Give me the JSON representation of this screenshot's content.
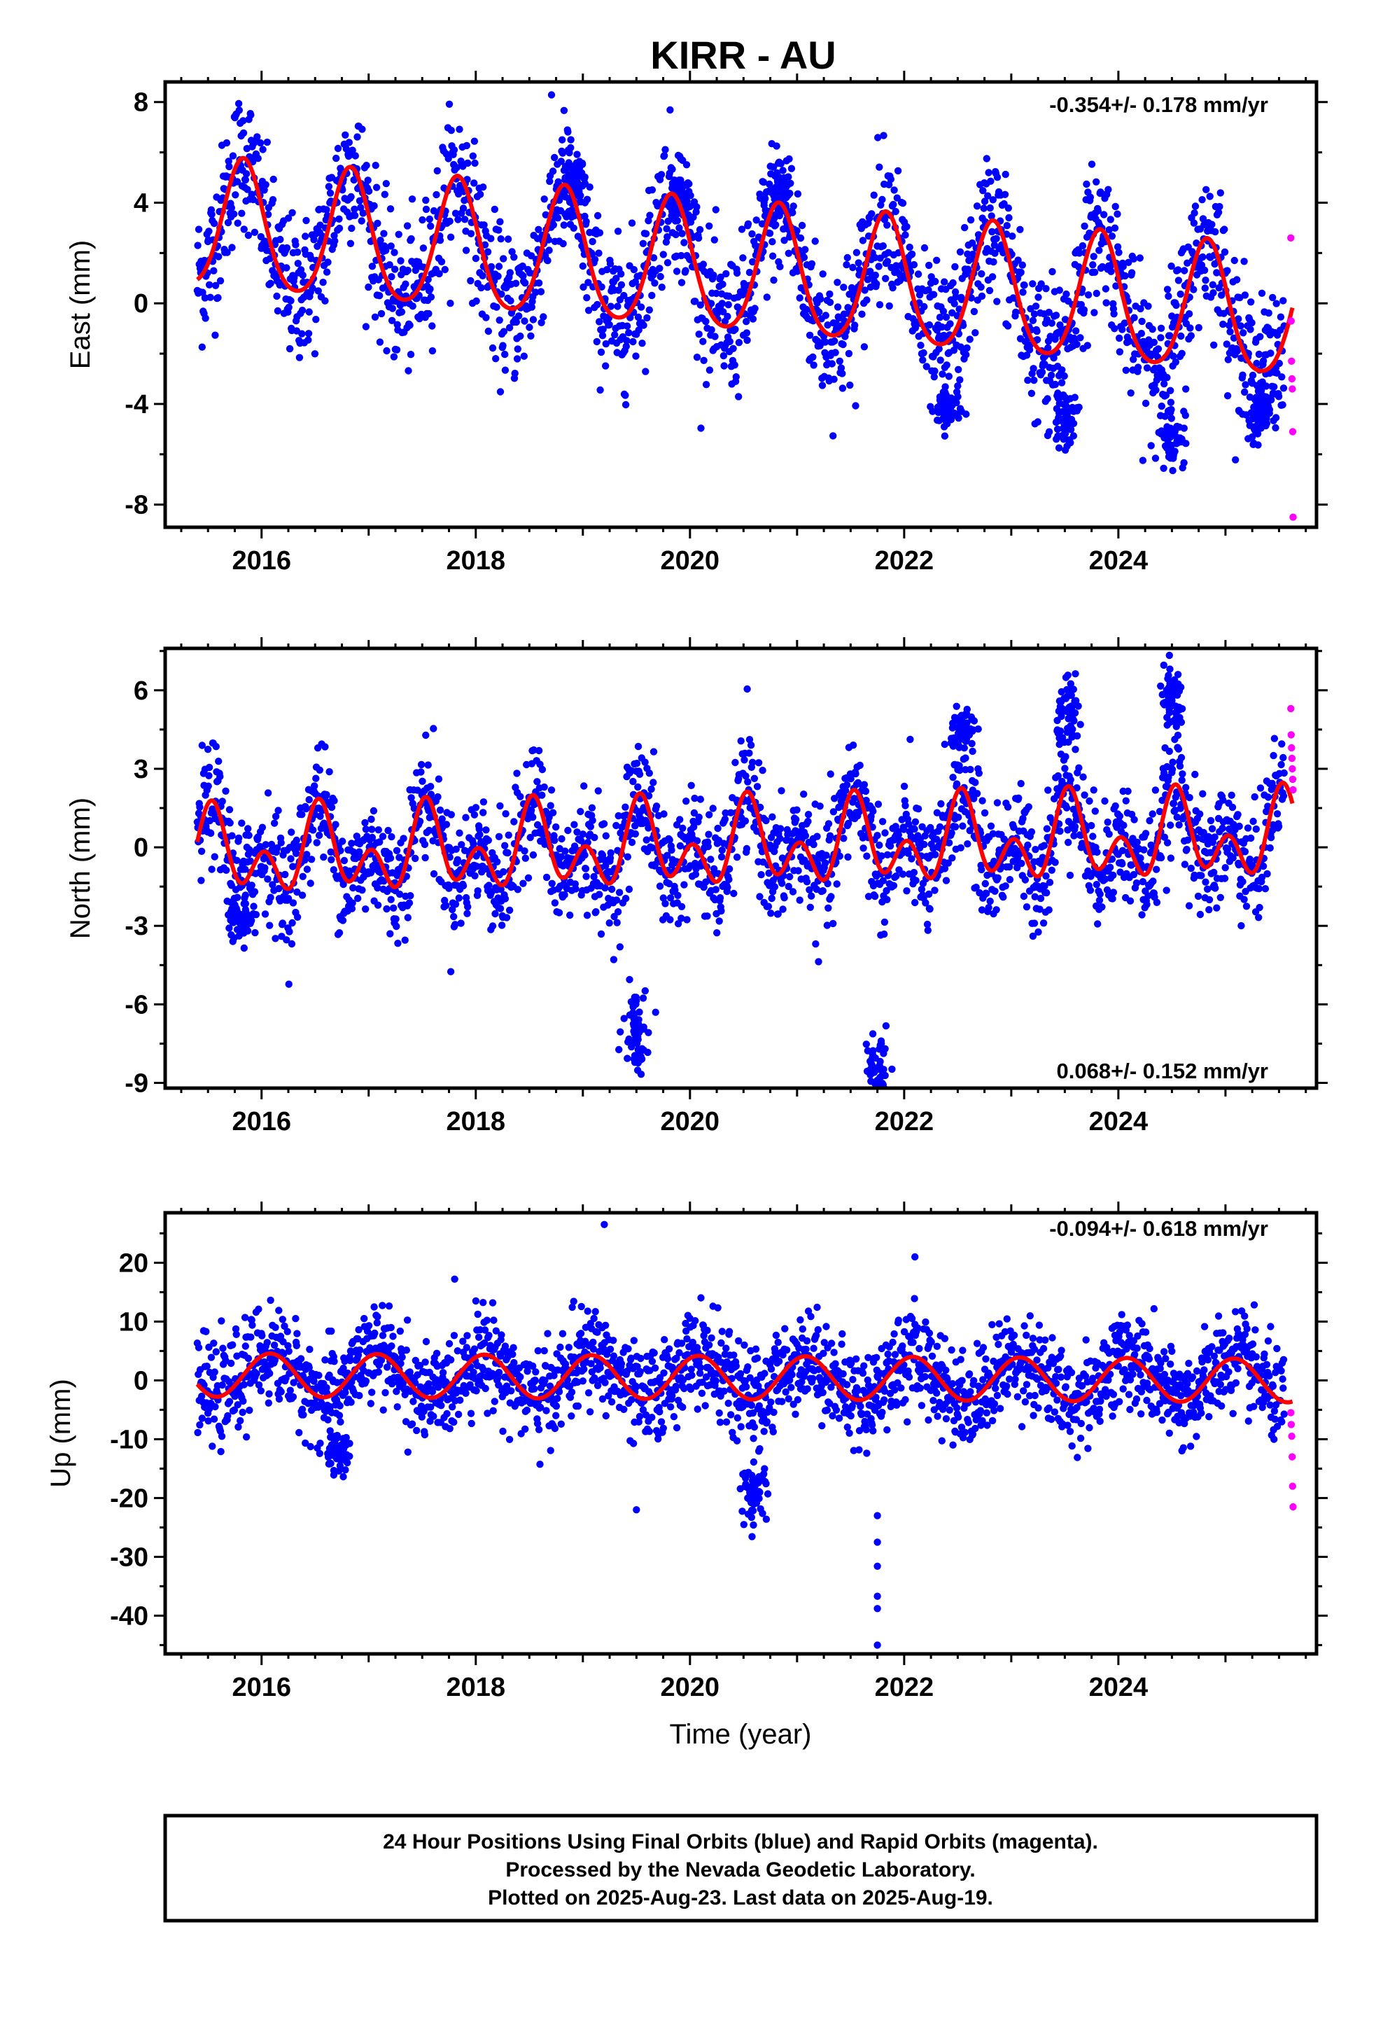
{
  "chart_data": [
    {
      "type": "scatter",
      "title": "KIRR - AU",
      "xlabel": "",
      "ylabel": "East (mm)",
      "xlim": [
        2015.1,
        2025.85
      ],
      "ylim": [
        -8.9,
        8.8
      ],
      "x_ticks": [
        "2016",
        "2018",
        "2020",
        "2022",
        "2024"
      ],
      "y_ticks": [
        "8",
        "4",
        "0",
        "-4",
        "-8"
      ],
      "rate_text": "-0.354+/- 0.178 mm/yr",
      "rate_position": "top-right",
      "model": {
        "intercept": 1.4,
        "rate": -0.354,
        "annual_amp": 2.55,
        "annual_peak": 0.83,
        "semi_amp": 0.35,
        "semi_peak": 0.33,
        "color": "#ff0000"
      },
      "series": [
        {
          "name": "Final Orbits",
          "color": "#0000ff",
          "x_range": [
            2015.4,
            2025.55
          ],
          "scatter": 1.4
        },
        {
          "name": "Rapid Orbits",
          "color": "#ff00ff",
          "x_range": [
            2025.56,
            2025.63
          ],
          "values": [
            2.6,
            -0.7,
            -2.3,
            -3.0,
            -3.4,
            -5.1,
            -8.5
          ]
        }
      ],
      "features": [
        [
          2018.9,
          4.8
        ],
        [
          2019.9,
          4.2
        ],
        [
          2020.85,
          4.2
        ],
        [
          2022.4,
          -4.2
        ],
        [
          2023.5,
          -4.6
        ],
        [
          2024.5,
          -5.2
        ],
        [
          2025.3,
          -4.4
        ]
      ]
    },
    {
      "type": "scatter",
      "title": "",
      "xlabel": "",
      "ylabel": "North (mm)",
      "xlim": [
        2015.1,
        2025.85
      ],
      "ylim": [
        -9.2,
        7.6
      ],
      "x_ticks": [
        "2016",
        "2018",
        "2020",
        "2022",
        "2024"
      ],
      "y_ticks": [
        "6",
        "3",
        "0",
        "-3",
        "-6",
        "-9"
      ],
      "rate_text": "0.068+/- 0.152 mm/yr",
      "rate_position": "bottom-right",
      "model": {
        "intercept": 0.0,
        "rate": 0.068,
        "annual_amp": 1.0,
        "annual_peak": 0.55,
        "semi_amp": 1.1,
        "semi_peak": 0.53,
        "color": "#ff0000"
      },
      "series": [
        {
          "name": "Final Orbits",
          "color": "#0000ff",
          "x_range": [
            2015.4,
            2025.55
          ],
          "scatter": 1.1
        },
        {
          "name": "Rapid Orbits",
          "color": "#ff00ff",
          "x_range": [
            2025.56,
            2025.63
          ],
          "values": [
            5.3,
            4.3,
            3.8,
            3.4,
            3.0,
            2.6,
            2.2
          ]
        }
      ],
      "features": [
        [
          2015.8,
          -2.8
        ],
        [
          2022.55,
          4.4
        ],
        [
          2023.55,
          5.0
        ],
        [
          2024.5,
          5.6
        ],
        [
          2021.75,
          -8.9
        ],
        [
          2019.5,
          -6.8
        ]
      ]
    },
    {
      "type": "scatter",
      "title": "",
      "xlabel": "Time (year)",
      "ylabel": "Up (mm)",
      "xlim": [
        2015.1,
        2025.85
      ],
      "ylim": [
        -46.5,
        28.5
      ],
      "x_ticks": [
        "2016",
        "2018",
        "2020",
        "2022",
        "2024"
      ],
      "y_ticks": [
        "20",
        "10",
        "0",
        "-10",
        "-20",
        "-30",
        "-40"
      ],
      "rate_text": "-0.094+/- 0.618 mm/yr",
      "rate_position": "top-right",
      "model": {
        "intercept": 0.5,
        "rate": -0.094,
        "annual_amp": 3.7,
        "annual_peak": 0.08,
        "semi_amp": 0.0,
        "semi_peak": 0.0,
        "color": "#ff0000"
      },
      "series": [
        {
          "name": "Final Orbits",
          "color": "#0000ff",
          "x_range": [
            2015.4,
            2025.55
          ],
          "scatter": 4.0
        },
        {
          "name": "Rapid Orbits",
          "color": "#ff00ff",
          "x_range": [
            2025.56,
            2025.63
          ],
          "values": [
            -5.5,
            -7.5,
            -9.5,
            -13.0,
            -18.0,
            -21.5
          ]
        }
      ],
      "features": [
        [
          2019.2,
          26.5
        ],
        [
          2021.75,
          -45.0
        ],
        [
          2021.75,
          -38.8
        ],
        [
          2021.75,
          -36.7
        ],
        [
          2021.75,
          -31.6
        ],
        [
          2021.75,
          -27.5
        ],
        [
          2021.75,
          -23.0
        ],
        [
          2022.1,
          21.0
        ],
        [
          2016.7,
          -12.5
        ],
        [
          2019.5,
          -22.0
        ],
        [
          2020.6,
          -19.0
        ]
      ]
    }
  ],
  "footer": {
    "lines": [
      "24 Hour Positions Using Final Orbits (blue) and Rapid Orbits (magenta).",
      "Processed by the Nevada Geodetic Laboratory.",
      "Plotted on 2025-Aug-23. Last data on 2025-Aug-19."
    ]
  }
}
